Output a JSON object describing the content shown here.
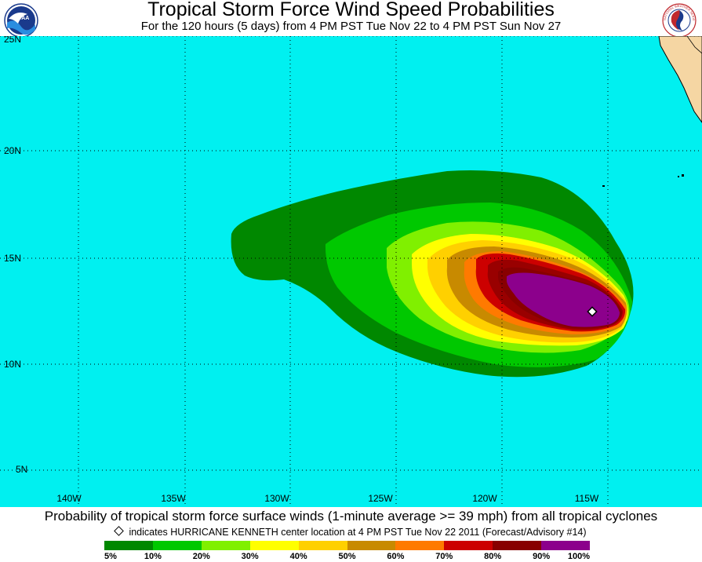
{
  "header": {
    "title": "Tropical Storm Force Wind Speed Probabilities",
    "subtitle": "For the 120 hours (5 days) from 4 PM PST Tue Nov 22 to 4 PM PST Sun Nov 27",
    "noaa_logo_text": "NOAA",
    "nws_logo_text": "NATIONAL WEATHER SERVICE"
  },
  "map": {
    "ocean_color": "#00f0f0",
    "land_color": "#f5d6a3",
    "latitude_labels": [
      "25N",
      "20N",
      "15N",
      "10N",
      "5N"
    ],
    "longitude_labels": [
      "140W",
      "135W",
      "130W",
      "125W",
      "120W",
      "115W"
    ],
    "center_marker_icon": "diamond-icon"
  },
  "footer": {
    "caption": "Probability of tropical storm force surface winds (1-minute average >= 39 mph) from all tropical cyclones",
    "note": "indicates HURRICANE KENNETH center location at 4 PM PST Tue Nov 22 2011 (Forecast/Advisory #14)"
  },
  "legend": {
    "colors": [
      "#008800",
      "#00c800",
      "#80f000",
      "#ffff00",
      "#ffd000",
      "#c88a00",
      "#ff7a00",
      "#cc0000",
      "#880000",
      "#8c008c"
    ],
    "ticks": [
      "5%",
      "10%",
      "20%",
      "30%",
      "40%",
      "50%",
      "60%",
      "70%",
      "80%",
      "90%",
      "100%"
    ]
  }
}
